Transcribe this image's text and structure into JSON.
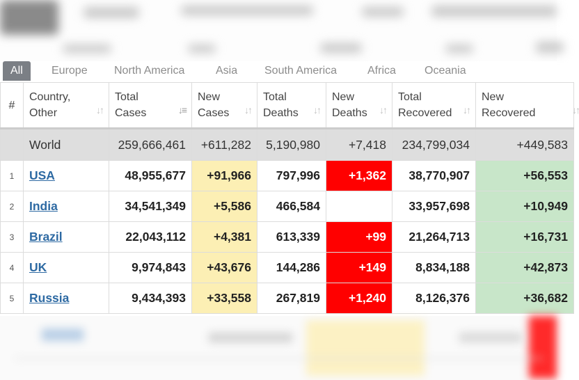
{
  "tabs": [
    "All",
    "Europe",
    "North America",
    "Asia",
    "South America",
    "Africa",
    "Oceania"
  ],
  "active_tab": "All",
  "sort_icon": "sort-arrows-icon",
  "columns": {
    "rank": "#",
    "country_l1": "Country,",
    "country_l2": "Other",
    "total_cases_l1": "Total",
    "total_cases_l2": "Cases",
    "new_cases_l1": "New",
    "new_cases_l2": "Cases",
    "total_deaths_l1": "Total",
    "total_deaths_l2": "Deaths",
    "new_deaths_l1": "New",
    "new_deaths_l2": "Deaths",
    "total_recovered_l1": "Total",
    "total_recovered_l2": "Recovered",
    "new_recovered_l1": "New",
    "new_recovered_l2": "Recovered"
  },
  "world": {
    "country": "World",
    "total_cases": "259,666,461",
    "new_cases": "+611,282",
    "total_deaths": "5,190,980",
    "new_deaths": "+7,418",
    "total_recovered": "234,799,034",
    "new_recovered": "+449,583"
  },
  "rows": [
    {
      "rank": "1",
      "country": "USA",
      "total_cases": "48,955,677",
      "new_cases": "+91,966",
      "total_deaths": "797,996",
      "new_deaths": "+1,362",
      "total_recovered": "38,770,907",
      "new_recovered": "+56,553"
    },
    {
      "rank": "2",
      "country": "India",
      "total_cases": "34,541,349",
      "new_cases": "+5,586",
      "total_deaths": "466,584",
      "new_deaths": "",
      "total_recovered": "33,957,698",
      "new_recovered": "+10,949"
    },
    {
      "rank": "3",
      "country": "Brazil",
      "total_cases": "22,043,112",
      "new_cases": "+4,381",
      "total_deaths": "613,339",
      "new_deaths": "+99",
      "total_recovered": "21,264,713",
      "new_recovered": "+16,731"
    },
    {
      "rank": "4",
      "country": "UK",
      "total_cases": "9,974,843",
      "new_cases": "+43,676",
      "total_deaths": "144,286",
      "new_deaths": "+149",
      "total_recovered": "8,834,188",
      "new_recovered": "+42,873"
    },
    {
      "rank": "5",
      "country": "Russia",
      "total_cases": "9,434,393",
      "new_cases": "+33,558",
      "total_deaths": "267,819",
      "new_deaths": "+1,240",
      "total_recovered": "8,126,376",
      "new_recovered": "+36,682"
    }
  ],
  "colors": {
    "new_cases_bg": "#fcefb4",
    "new_deaths_bg": "#ff0000",
    "new_recovered_bg": "#c8e6c9",
    "world_row_bg": "#dedede",
    "active_tab_bg": "#7b7f85",
    "link": "#2e6aa3"
  }
}
